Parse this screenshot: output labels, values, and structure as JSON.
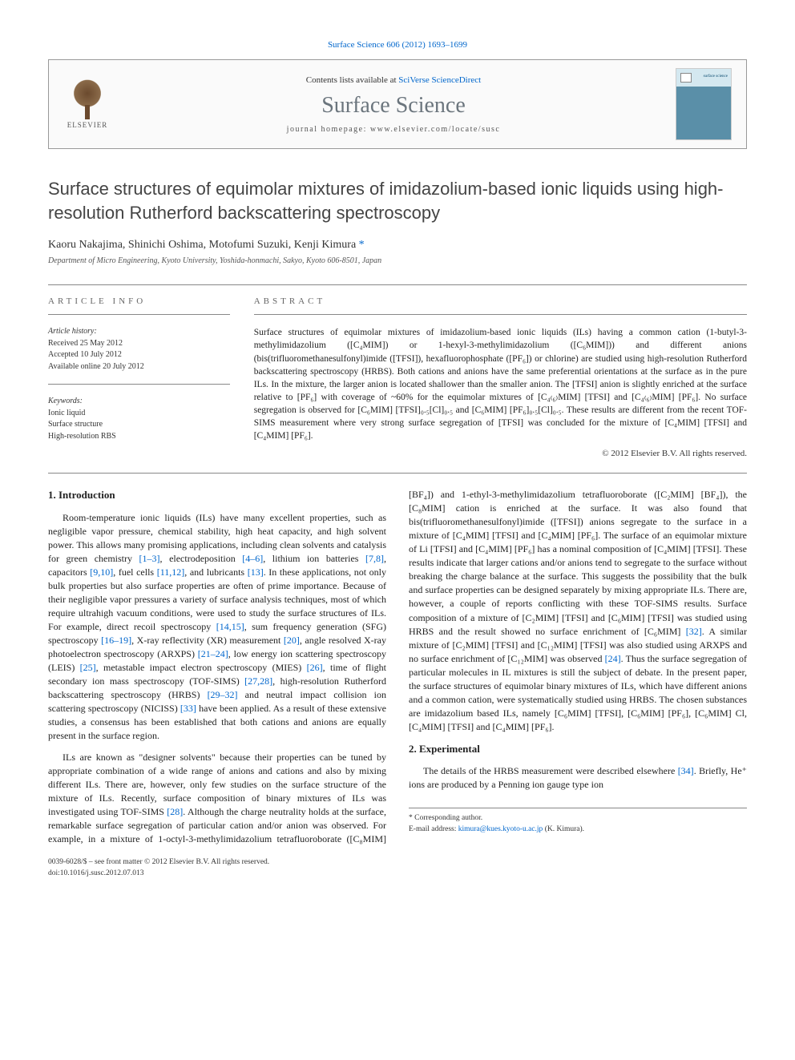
{
  "journal_ref": "Surface Science 606 (2012) 1693–1699",
  "header": {
    "contents_prefix": "Contents lists available at ",
    "contents_link": "SciVerse ScienceDirect",
    "journal_title": "Surface Science",
    "homepage_prefix": "journal homepage: ",
    "homepage_url": "www.elsevier.com/locate/susc",
    "publisher": "ELSEVIER",
    "cover_label": "surface science"
  },
  "article": {
    "title": "Surface structures of equimolar mixtures of imidazolium-based ionic liquids using high-resolution Rutherford backscattering spectroscopy",
    "authors": "Kaoru Nakajima, Shinichi Oshima, Motofumi Suzuki, Kenji Kimura ",
    "corr_mark": "*",
    "affiliation": "Department of Micro Engineering, Kyoto University, Yoshida-honmachi, Sakyo, Kyoto 606-8501, Japan"
  },
  "meta": {
    "info_label": "ARTICLE INFO",
    "history_hdr": "Article history:",
    "received": "Received 25 May 2012",
    "accepted": "Accepted 10 July 2012",
    "online": "Available online 20 July 2012",
    "keywords_hdr": "Keywords:",
    "keywords": [
      "Ionic liquid",
      "Surface structure",
      "High-resolution RBS"
    ]
  },
  "abstract": {
    "label": "ABSTRACT",
    "text": "Surface structures of equimolar mixtures of imidazolium-based ionic liquids (ILs) having a common cation (1-butyl-3-methylimidazolium ([C₄MIM]) or 1-hexyl-3-methylimidazolium ([C₆MIM])) and different anions (bis(trifluoromethanesulfonyl)imide ([TFSI]), hexafluorophosphate ([PF₆]) or chlorine) are studied using high-resolution Rutherford backscattering spectroscopy (HRBS). Both cations and anions have the same preferential orientations at the surface as in the pure ILs. In the mixture, the larger anion is located shallower than the smaller anion. The [TFSI] anion is slightly enriched at the surface relative to [PF₆] with coverage of ~60% for the equimolar mixtures of [C₄₍₆₎MIM] [TFSI] and [C₄₍₆₎MIM] [PF₆]. No surface segregation is observed for [C₆MIM] [TFSI]₀.₅[Cl]₀.₅ and [C₆MIM] [PF₆]₀.₅[Cl]₀.₅. These results are different from the recent TOF-SIMS measurement where very strong surface segregation of [TFSI] was concluded for the mixture of [C₄MIM] [TFSI] and [C₄MIM] [PF₆].",
    "copyright": "© 2012 Elsevier B.V. All rights reserved."
  },
  "sections": {
    "intro_hdr": "1. Introduction",
    "intro_p1a": "Room-temperature ionic liquids (ILs) have many excellent properties, such as negligible vapor pressure, chemical stability, high heat capacity, and high solvent power. This allows many promising applications, including clean solvents and catalysis for green chemistry ",
    "ref1": "[1–3]",
    "intro_p1b": ", electrodeposition ",
    "ref2": "[4–6]",
    "intro_p1c": ", lithium ion batteries ",
    "ref3": "[7,8]",
    "intro_p1d": ", capacitors ",
    "ref4": "[9,10]",
    "intro_p1e": ", fuel cells ",
    "ref5": "[11,12]",
    "intro_p1f": ", and lubricants ",
    "ref6": "[13]",
    "intro_p1g": ". In these applications, not only bulk properties but also surface properties are often of prime importance. Because of their negligible vapor pressures a variety of surface analysis techniques, most of which require ultrahigh vacuum conditions, were used to study the surface structures of ILs. For example, direct recoil spectroscopy ",
    "ref7": "[14,15]",
    "intro_p1h": ", sum frequency generation (SFG) spectroscopy ",
    "ref8": "[16–19]",
    "intro_p1i": ", X-ray reflectivity (XR) measurement ",
    "ref9": "[20]",
    "intro_p1j": ", angle resolved X-ray photoelectron spectroscopy (ARXPS) ",
    "ref10": "[21–24]",
    "intro_p1k": ", low energy ion scattering spectroscopy (LEIS) ",
    "ref11": "[25]",
    "intro_p1l": ", metastable impact electron spectroscopy (MIES) ",
    "ref12": "[26]",
    "intro_p1m": ", time of flight secondary ion mass spectroscopy (TOF-SIMS) ",
    "ref13": "[27,28]",
    "intro_p1n": ", high-resolution Rutherford backscattering spectroscopy (HRBS) ",
    "ref14": "[29–32]",
    "intro_p1o": " and neutral impact collision ion scattering spectroscopy (NICISS) ",
    "ref15": "[33]",
    "intro_p1p": " have been applied. As a result of these extensive studies, a consensus has been established that both cations and anions are equally present in the surface region.",
    "intro_p2a": "ILs are known as \"designer solvents\" because their properties can be tuned by appropriate combination of a wide range of anions and cations and also by mixing different ILs. There are, however, only few studies on the surface structure of the mixture of ILs. Recently, surface composition of binary mixtures of ILs was investigated using TOF-SIMS ",
    "ref16": "[28]",
    "intro_p2b": ". Although the charge neutrality holds at the surface, remarkable surface segregation of particular cation and/or anion was observed. For example, in a mixture of 1-octyl-3-methylimidazolium tetrafluoroborate ([C₈MIM] [BF₄]) and 1-ethyl-3-methylimidazolium tetrafluoroborate ([C₂MIM] [BF₄]), the [C₈MIM] cation is enriched at the surface. It was also found that bis(trifluoromethanesulfonyl)imide ([TFSI]) anions segregate to the surface in a mixture of [C₄MIM] [TFSI] and [C₄MIM] [PF₆]. The surface of an equimolar mixture of Li [TFSI] and [C₄MIM] [PF₆] has a nominal composition of [C₄MIM] [TFSI]. These results indicate that larger cations and/or anions tend to segregate to the surface without breaking the charge balance at the surface. This suggests the possibility that the bulk and surface properties can be designed separately by mixing appropriate ILs. There are, however, a couple of reports conflicting with these TOF-SIMS results. Surface composition of a mixture of [C₂MIM] [TFSI] and [C₆MIM] [TFSI] was studied using HRBS and the result showed no surface enrichment of [C₆MIM] ",
    "ref17": "[32]",
    "intro_p2c": ". A similar mixture of [C₂MIM] [TFSI] and [C₁₂MIM] [TFSI] was also studied using ARXPS and no surface enrichment of [C₁₂MIM] was observed ",
    "ref18": "[24]",
    "intro_p2d": ". Thus the surface segregation of particular molecules in IL mixtures is still the subject of debate. In the present paper, the surface structures of equimolar binary mixtures of ILs, which have different anions and a common cation, were systematically studied using HRBS. The chosen substances are imidazolium based ILs, namely [C₆MIM] [TFSI], [C₆MIM] [PF₆], [C₆MIM] Cl, [C₄MIM] [TFSI] and [C₄MIM] [PF₆].",
    "exp_hdr": "2. Experimental",
    "exp_p1a": "The details of the HRBS measurement were described elsewhere ",
    "ref19": "[34]",
    "exp_p1b": ". Briefly, He⁺ ions are produced by a Penning ion gauge type ion"
  },
  "footer": {
    "corr_label": "* Corresponding author.",
    "email_label": "E-mail address: ",
    "email": "kimura@kues.kyoto-u.ac.jp",
    "email_suffix": " (K. Kimura).",
    "issn": "0039-6028/$ – see front matter © 2012 Elsevier B.V. All rights reserved.",
    "doi": "doi:10.1016/j.susc.2012.07.013"
  },
  "colors": {
    "link": "#0066cc",
    "text": "#222222",
    "heading_gray": "#6b757d",
    "rule": "#888888"
  }
}
